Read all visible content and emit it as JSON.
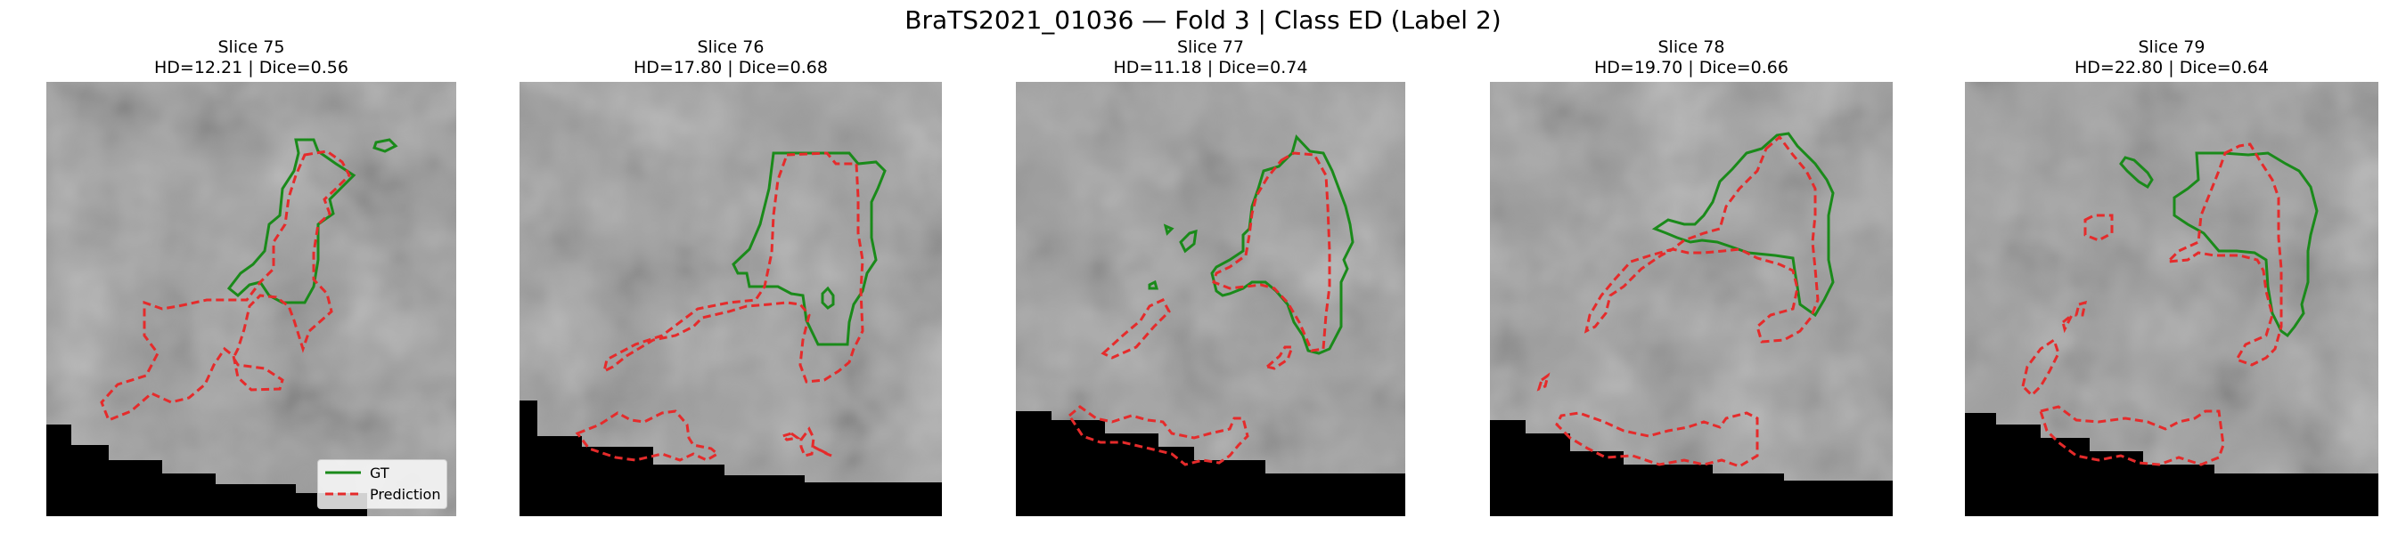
{
  "title": "BraTS2021_01036 — Fold 3 | Class ED (Label 2)",
  "panels": [
    {
      "slice": "Slice 75",
      "metrics": "HD=12.21 | Dice=0.56"
    },
    {
      "slice": "Slice 76",
      "metrics": "HD=17.80 | Dice=0.68"
    },
    {
      "slice": "Slice 77",
      "metrics": "HD=11.18 | Dice=0.74"
    },
    {
      "slice": "Slice 78",
      "metrics": "HD=19.70 | Dice=0.66"
    },
    {
      "slice": "Slice 79",
      "metrics": "HD=22.80 | Dice=0.64"
    }
  ],
  "legend": {
    "gt": "GT",
    "prediction": "Prediction"
  },
  "colors": {
    "gt": "#1a8a1a",
    "prediction": "#e52b2b",
    "background": "#000000"
  }
}
